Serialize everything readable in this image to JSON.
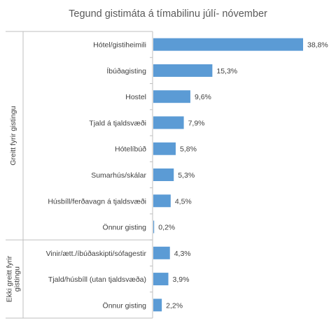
{
  "chart_data": {
    "type": "bar",
    "orientation": "horizontal",
    "title": "Tegund gistimáta á tímabilinu júlí- nóvember",
    "categories": [
      "Hótel/gistiheimili",
      "Íbúðagisting",
      "Hostel",
      "Tjald á tjaldsvæði",
      "Hótelíbúð",
      "Sumarhús/skálar",
      "Húsbíll/ferðavagn á tjaldsvæði",
      "Önnur gisting",
      "Vinir/ætt./íbúðaskipti/sófagestir",
      "Tjald/húsbíll (utan tjaldsvæða)",
      "Önnur gisting"
    ],
    "values": [
      38.8,
      15.3,
      9.6,
      7.9,
      5.8,
      5.3,
      4.5,
      0.2,
      4.3,
      3.9,
      2.2
    ],
    "value_labels": [
      "38,8%",
      "15,3%",
      "9,6%",
      "7,9%",
      "5,8%",
      "5,3%",
      "4,5%",
      "0,2%",
      "4,3%",
      "3,9%",
      "2,2%"
    ],
    "groups": [
      {
        "label": "Greitt fyrir gistingu",
        "count": 8
      },
      {
        "label_lines": [
          "Ekki greitt fyrir",
          "gistingu"
        ],
        "count": 3
      }
    ],
    "xlim": [
      0,
      45
    ],
    "grid": false,
    "legend": "none",
    "bar_color": "#5b9bd5"
  }
}
